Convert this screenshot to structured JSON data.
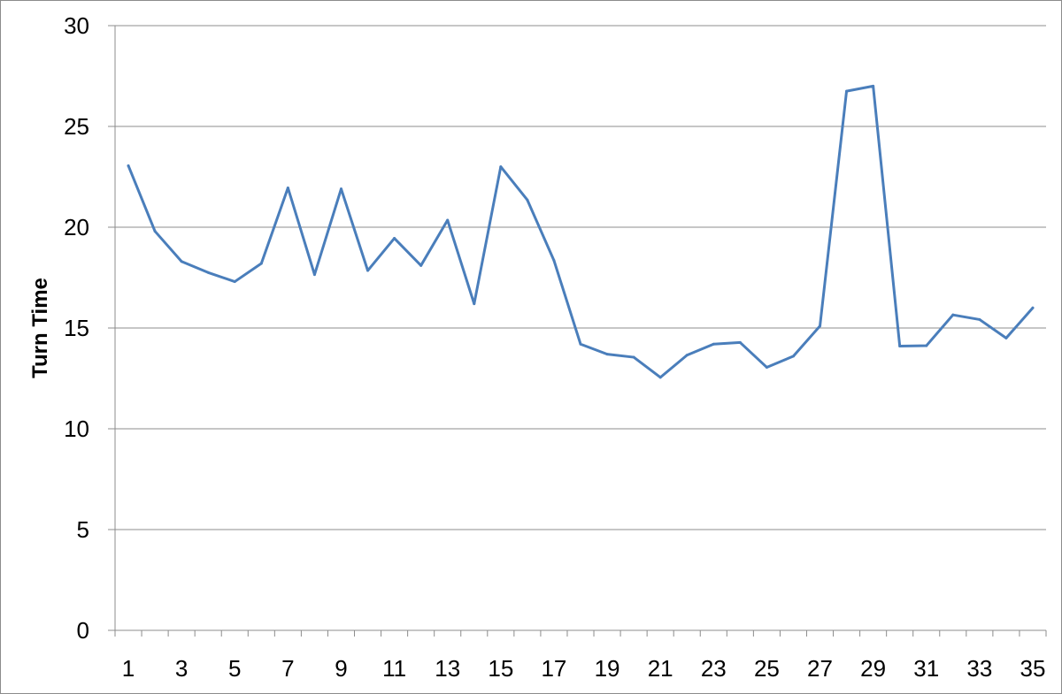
{
  "chart_data": {
    "type": "line",
    "ylabel": "Turn Time",
    "xlabel": "",
    "title": "",
    "ylim": [
      0,
      30
    ],
    "y_ticks": [
      "0",
      "5",
      "10",
      "15",
      "20",
      "25",
      "30"
    ],
    "x_tick_labels": [
      "1",
      "3",
      "5",
      "7",
      "9",
      "11",
      "13",
      "15",
      "17",
      "19",
      "21",
      "23",
      "25",
      "27",
      "29",
      "31",
      "33",
      "35"
    ],
    "grid": "horizontal",
    "legend": "none",
    "series": [
      {
        "color": "#4a7ebb",
        "x": [
          1,
          2,
          3,
          4,
          5,
          6,
          7,
          8,
          9,
          10,
          11,
          12,
          13,
          14,
          15,
          16,
          17,
          18,
          19,
          20,
          21,
          22,
          23,
          24,
          25,
          26,
          27,
          28,
          29,
          30,
          31,
          32,
          33,
          34,
          35
        ],
        "values": [
          23.05,
          19.8,
          18.3,
          17.75,
          17.3,
          18.2,
          21.95,
          17.65,
          21.9,
          17.85,
          19.45,
          18.1,
          20.35,
          16.2,
          23.0,
          21.35,
          18.35,
          14.2,
          13.7,
          13.55,
          12.55,
          13.65,
          14.2,
          14.28,
          13.05,
          13.6,
          15.1,
          26.75,
          27.0,
          14.1,
          14.12,
          15.65,
          15.42,
          14.5,
          16.0
        ]
      }
    ]
  }
}
